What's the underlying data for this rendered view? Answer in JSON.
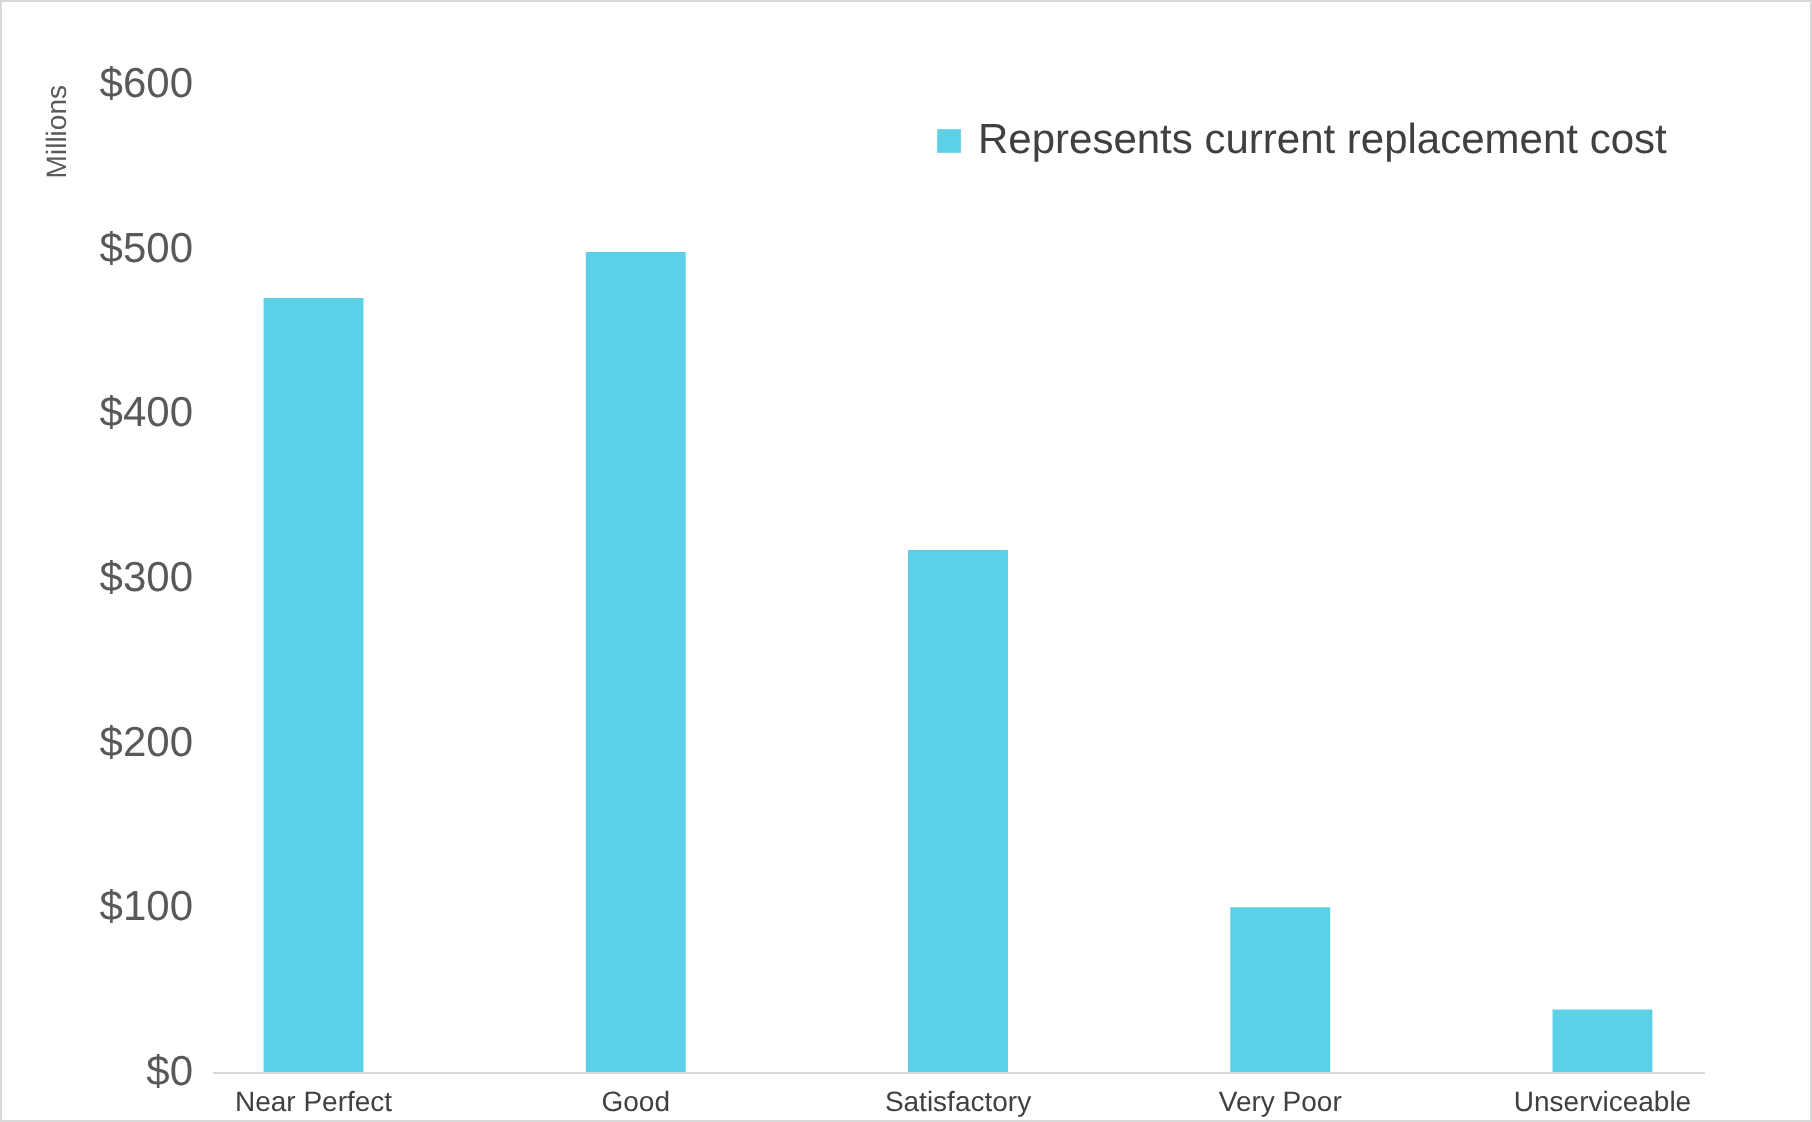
{
  "chart_data": {
    "type": "bar",
    "ylabel": "Millions",
    "categories": [
      "Near Perfect",
      "Good",
      "Satisfactory",
      "Very Poor",
      "Unserviceable"
    ],
    "series": [
      {
        "name": "Represents current replacement cost",
        "color": "#5bd0e6",
        "values": [
          470,
          498,
          317,
          100,
          38
        ]
      }
    ],
    "ylim": [
      0,
      600
    ],
    "yticks": [
      {
        "value": 0,
        "label": "$0"
      },
      {
        "value": 100,
        "label": "$100"
      },
      {
        "value": 200,
        "label": "$200"
      },
      {
        "value": 300,
        "label": "$300"
      },
      {
        "value": 400,
        "label": "$400"
      },
      {
        "value": 500,
        "label": "$500"
      },
      {
        "value": 600,
        "label": "$600"
      }
    ],
    "grid": false,
    "legend": "top right"
  }
}
